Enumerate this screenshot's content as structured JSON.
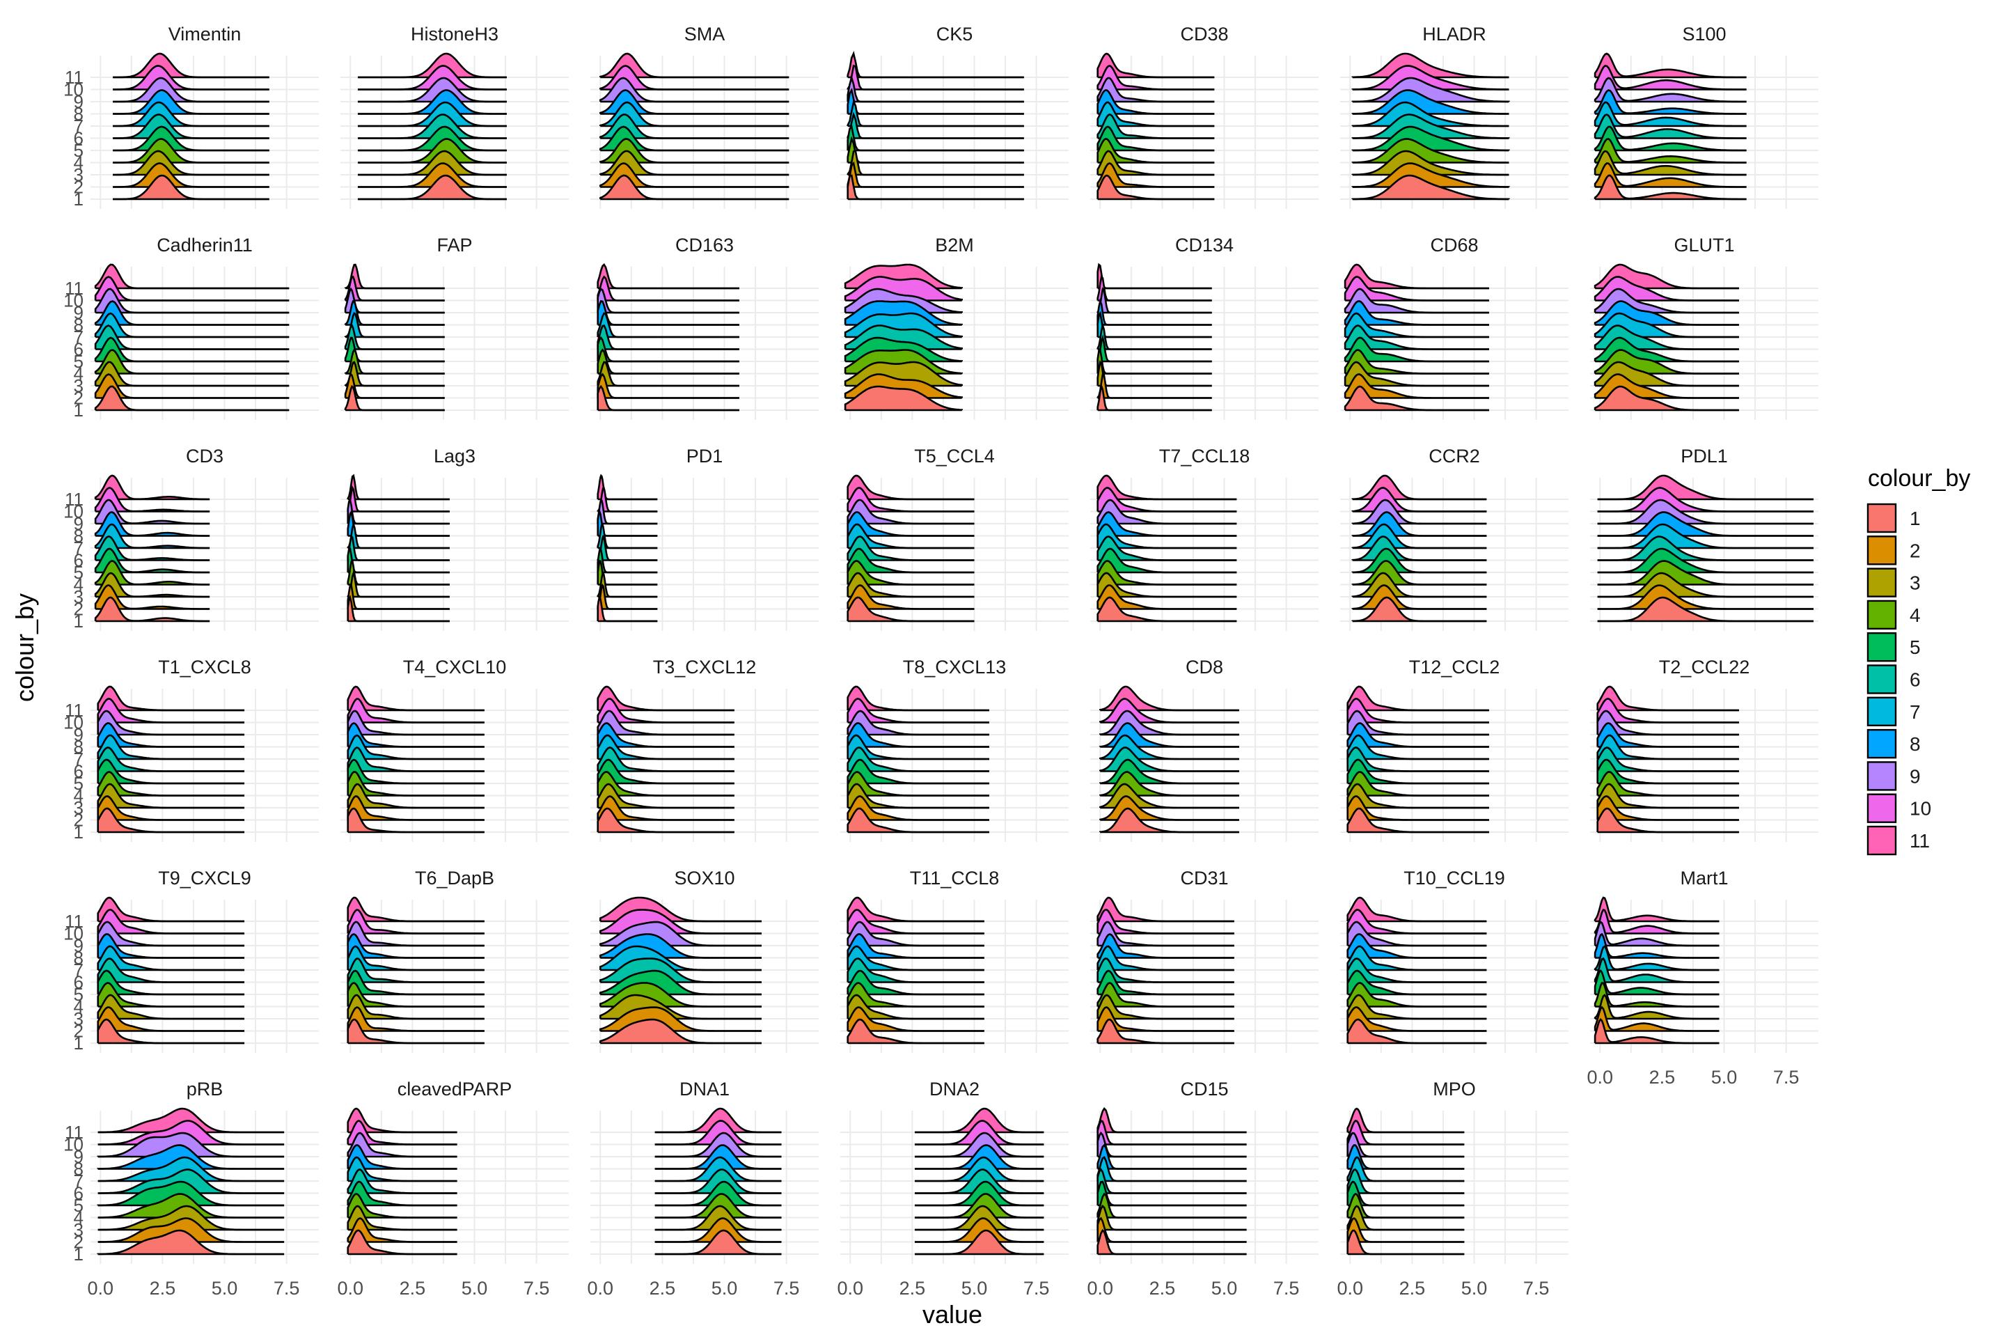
{
  "chart_data": {
    "type": "ridgeline",
    "xlabel": "value",
    "ylabel": "colour_by",
    "xlim": [
      -0.4,
      8.8
    ],
    "x_ticks": [
      "0.0",
      "2.5",
      "5.0",
      "7.5"
    ],
    "x_tick_values": [
      0,
      2.5,
      5,
      7.5
    ],
    "y_levels": [
      "1",
      "2",
      "3",
      "4",
      "5",
      "6",
      "7",
      "8",
      "9",
      "10",
      "11"
    ],
    "legend": {
      "title": "colour_by",
      "position": "right",
      "entries": [
        "1",
        "2",
        "3",
        "4",
        "5",
        "6",
        "7",
        "8",
        "9",
        "10",
        "11"
      ],
      "colors": [
        "#F8766D",
        "#DB8E00",
        "#AEA200",
        "#64B200",
        "#00BD5C",
        "#00C1A7",
        "#00BADE",
        "#00A6FF",
        "#B385FF",
        "#EF67EB",
        "#FF63B6"
      ]
    },
    "facets": [
      {
        "name": "Vimentin",
        "range": [
          0.5,
          6.8
        ],
        "modes": [
          [
            2.4,
            0.45,
            1
          ]
        ]
      },
      {
        "name": "HistoneH3",
        "range": [
          0.3,
          6.3
        ],
        "modes": [
          [
            3.8,
            0.5,
            1
          ]
        ]
      },
      {
        "name": "SMA",
        "range": [
          0.0,
          7.6
        ],
        "modes": [
          [
            1.0,
            0.4,
            1
          ]
        ]
      },
      {
        "name": "CK5",
        "range": [
          -0.1,
          7.0
        ],
        "modes": [
          [
            0.1,
            0.1,
            1
          ]
        ]
      },
      {
        "name": "CD38",
        "range": [
          -0.1,
          4.6
        ],
        "modes": [
          [
            0.3,
            0.25,
            1
          ],
          [
            1.0,
            0.5,
            0.15
          ]
        ]
      },
      {
        "name": "HLADR",
        "range": [
          0.1,
          6.4
        ],
        "modes": [
          [
            2.2,
            0.6,
            1
          ],
          [
            3.3,
            0.9,
            0.5
          ]
        ]
      },
      {
        "name": "S100",
        "range": [
          -0.2,
          5.9
        ],
        "modes": [
          [
            0.3,
            0.25,
            1
          ],
          [
            2.8,
            0.8,
            0.3
          ]
        ]
      },
      {
        "name": "Cadherin11",
        "range": [
          -0.2,
          7.6
        ],
        "modes": [
          [
            0.4,
            0.3,
            1
          ]
        ]
      },
      {
        "name": "FAP",
        "range": [
          -0.2,
          3.8
        ],
        "modes": [
          [
            0.1,
            0.12,
            1
          ]
        ]
      },
      {
        "name": "CD163",
        "range": [
          -0.1,
          5.6
        ],
        "modes": [
          [
            0.1,
            0.15,
            1
          ]
        ]
      },
      {
        "name": "B2M",
        "range": [
          -0.2,
          4.5
        ],
        "modes": [
          [
            1.0,
            0.7,
            0.85
          ],
          [
            2.6,
            0.7,
            0.7
          ]
        ]
      },
      {
        "name": "CD134",
        "range": [
          -0.1,
          4.5
        ],
        "modes": [
          [
            0.05,
            0.08,
            1
          ]
        ]
      },
      {
        "name": "CD68",
        "range": [
          -0.2,
          5.6
        ],
        "modes": [
          [
            0.3,
            0.3,
            1
          ],
          [
            1.2,
            0.6,
            0.3
          ]
        ]
      },
      {
        "name": "GLUT1",
        "range": [
          -0.2,
          5.6
        ],
        "modes": [
          [
            0.7,
            0.45,
            1
          ],
          [
            1.8,
            0.6,
            0.5
          ]
        ]
      },
      {
        "name": "CD3",
        "range": [
          -0.2,
          4.4
        ],
        "modes": [
          [
            0.4,
            0.3,
            1
          ],
          [
            2.6,
            0.5,
            0.1
          ]
        ]
      },
      {
        "name": "Lag3",
        "range": [
          -0.1,
          4.0
        ],
        "modes": [
          [
            0.05,
            0.08,
            1
          ]
        ]
      },
      {
        "name": "PD1",
        "range": [
          -0.1,
          2.3
        ],
        "modes": [
          [
            0.05,
            0.08,
            1
          ]
        ]
      },
      {
        "name": "T5_CCL4",
        "range": [
          -0.1,
          5.0
        ],
        "modes": [
          [
            0.3,
            0.3,
            1
          ],
          [
            1.0,
            0.5,
            0.2
          ]
        ]
      },
      {
        "name": "T7_CCL18",
        "range": [
          -0.1,
          5.5
        ],
        "modes": [
          [
            0.3,
            0.3,
            1
          ],
          [
            1.0,
            0.5,
            0.2
          ]
        ]
      },
      {
        "name": "CCR2",
        "range": [
          0.1,
          5.5
        ],
        "modes": [
          [
            1.4,
            0.4,
            1
          ]
        ]
      },
      {
        "name": "PDL1",
        "range": [
          -0.1,
          8.6
        ],
        "modes": [
          [
            2.4,
            0.5,
            1
          ],
          [
            3.3,
            0.6,
            0.35
          ]
        ]
      },
      {
        "name": "T1_CXCL8",
        "range": [
          -0.1,
          5.8
        ],
        "modes": [
          [
            0.3,
            0.3,
            1
          ],
          [
            1.0,
            0.5,
            0.15
          ]
        ]
      },
      {
        "name": "T4_CXCL10",
        "range": [
          -0.1,
          5.4
        ],
        "modes": [
          [
            0.2,
            0.25,
            1
          ],
          [
            0.9,
            0.5,
            0.15
          ]
        ]
      },
      {
        "name": "T3_CXCL12",
        "range": [
          -0.1,
          5.4
        ],
        "modes": [
          [
            0.3,
            0.3,
            1
          ],
          [
            1.0,
            0.5,
            0.15
          ]
        ]
      },
      {
        "name": "T8_CXCL13",
        "range": [
          -0.1,
          5.6
        ],
        "modes": [
          [
            0.3,
            0.3,
            1
          ],
          [
            1.0,
            0.5,
            0.2
          ]
        ]
      },
      {
        "name": "CD8",
        "range": [
          0.0,
          5.6
        ],
        "modes": [
          [
            1.0,
            0.35,
            1
          ],
          [
            1.6,
            0.5,
            0.3
          ]
        ]
      },
      {
        "name": "T12_CCL2",
        "range": [
          -0.1,
          5.6
        ],
        "modes": [
          [
            0.3,
            0.3,
            1
          ],
          [
            1.0,
            0.5,
            0.15
          ]
        ]
      },
      {
        "name": "T2_CCL22",
        "range": [
          -0.1,
          5.6
        ],
        "modes": [
          [
            0.3,
            0.3,
            1
          ],
          [
            1.0,
            0.5,
            0.15
          ]
        ]
      },
      {
        "name": "T9_CXCL9",
        "range": [
          -0.1,
          5.8
        ],
        "modes": [
          [
            0.3,
            0.3,
            1
          ],
          [
            1.0,
            0.5,
            0.2
          ]
        ]
      },
      {
        "name": "T6_DapB",
        "range": [
          -0.1,
          5.4
        ],
        "modes": [
          [
            0.2,
            0.25,
            1
          ],
          [
            1.0,
            0.5,
            0.15
          ]
        ]
      },
      {
        "name": "SOX10",
        "range": [
          0.0,
          6.5
        ],
        "modes": [
          [
            1.2,
            0.6,
            0.8
          ],
          [
            2.3,
            0.6,
            0.8
          ]
        ]
      },
      {
        "name": "T11_CCL8",
        "range": [
          -0.1,
          5.4
        ],
        "modes": [
          [
            0.3,
            0.3,
            1
          ],
          [
            1.1,
            0.5,
            0.25
          ]
        ]
      },
      {
        "name": "CD31",
        "range": [
          -0.1,
          5.4
        ],
        "modes": [
          [
            0.3,
            0.25,
            1
          ],
          [
            1.0,
            0.5,
            0.15
          ]
        ]
      },
      {
        "name": "T10_CCL19",
        "range": [
          -0.1,
          5.5
        ],
        "modes": [
          [
            0.3,
            0.3,
            1
          ],
          [
            1.1,
            0.5,
            0.25
          ]
        ]
      },
      {
        "name": "Mart1",
        "range": [
          -0.2,
          4.8
        ],
        "modes": [
          [
            0.1,
            0.15,
            1
          ],
          [
            1.8,
            0.6,
            0.25
          ]
        ]
      },
      {
        "name": "pRB",
        "range": [
          -0.1,
          7.4
        ],
        "modes": [
          [
            2.0,
            0.6,
            0.55
          ],
          [
            3.4,
            0.6,
            1
          ]
        ]
      },
      {
        "name": "cleavedPARP",
        "range": [
          -0.1,
          4.3
        ],
        "modes": [
          [
            0.3,
            0.25,
            1
          ],
          [
            0.9,
            0.5,
            0.15
          ]
        ]
      },
      {
        "name": "DNA1",
        "range": [
          2.2,
          7.3
        ],
        "modes": [
          [
            4.9,
            0.45,
            1
          ]
        ]
      },
      {
        "name": "DNA2",
        "range": [
          2.6,
          7.8
        ],
        "modes": [
          [
            5.4,
            0.45,
            1
          ]
        ]
      },
      {
        "name": "CD15",
        "range": [
          -0.1,
          5.9
        ],
        "modes": [
          [
            0.1,
            0.15,
            1
          ]
        ]
      },
      {
        "name": "MPO",
        "range": [
          -0.1,
          4.6
        ],
        "modes": [
          [
            0.2,
            0.2,
            1
          ]
        ]
      }
    ]
  }
}
